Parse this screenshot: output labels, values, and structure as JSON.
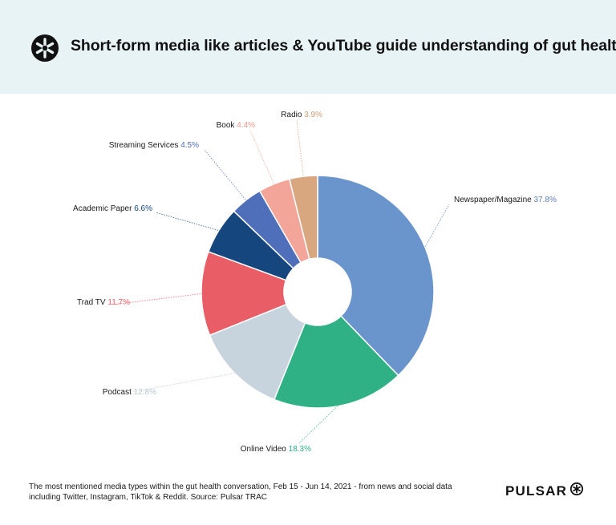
{
  "header": {
    "title": "Short-form media like articles & YouTube guide understanding of gut health"
  },
  "brand": {
    "name": "PULSAR"
  },
  "footer": {
    "note_line1": "The most mentioned media types within the gut health conversation, Feb 15 - Jun 14, 2021 - from news and social data",
    "note_line2": "including Twitter, Instagram, TikTok & Reddit. Source: Pulsar TRAC"
  },
  "colors": {
    "header_bg": "#e8f3f5"
  },
  "chart_data": {
    "type": "pie",
    "donut": true,
    "title": "",
    "slices": [
      {
        "label": "Newspaper/Magazine",
        "value": 37.8,
        "display": "37.8%",
        "color": "#6a94cc",
        "label_color": "#5b7fbf"
      },
      {
        "label": "Online Video",
        "value": 18.3,
        "display": "18.3%",
        "color": "#2fb085",
        "label_color": "#2fb085"
      },
      {
        "label": "Podcast",
        "value": 12.8,
        "display": "12.8%",
        "color": "#c8d4dd",
        "label_color": "#b9c6d0"
      },
      {
        "label": "Trad TV",
        "value": 11.7,
        "display": "11.7%",
        "color": "#e95d67",
        "label_color": "#e95d67"
      },
      {
        "label": "Academic Paper",
        "value": 6.6,
        "display": "6.6%",
        "color": "#15467d",
        "label_color": "#15467d"
      },
      {
        "label": "Streaming Services",
        "value": 4.5,
        "display": "4.5%",
        "color": "#4f6fba",
        "label_color": "#4f6fba"
      },
      {
        "label": "Book",
        "value": 4.4,
        "display": "4.4%",
        "color": "#f2a598",
        "label_color": "#f09a8a"
      },
      {
        "label": "Radio",
        "value": 3.9,
        "display": "3.9%",
        "color": "#d8a77f",
        "label_color": "#d29d72"
      }
    ]
  }
}
